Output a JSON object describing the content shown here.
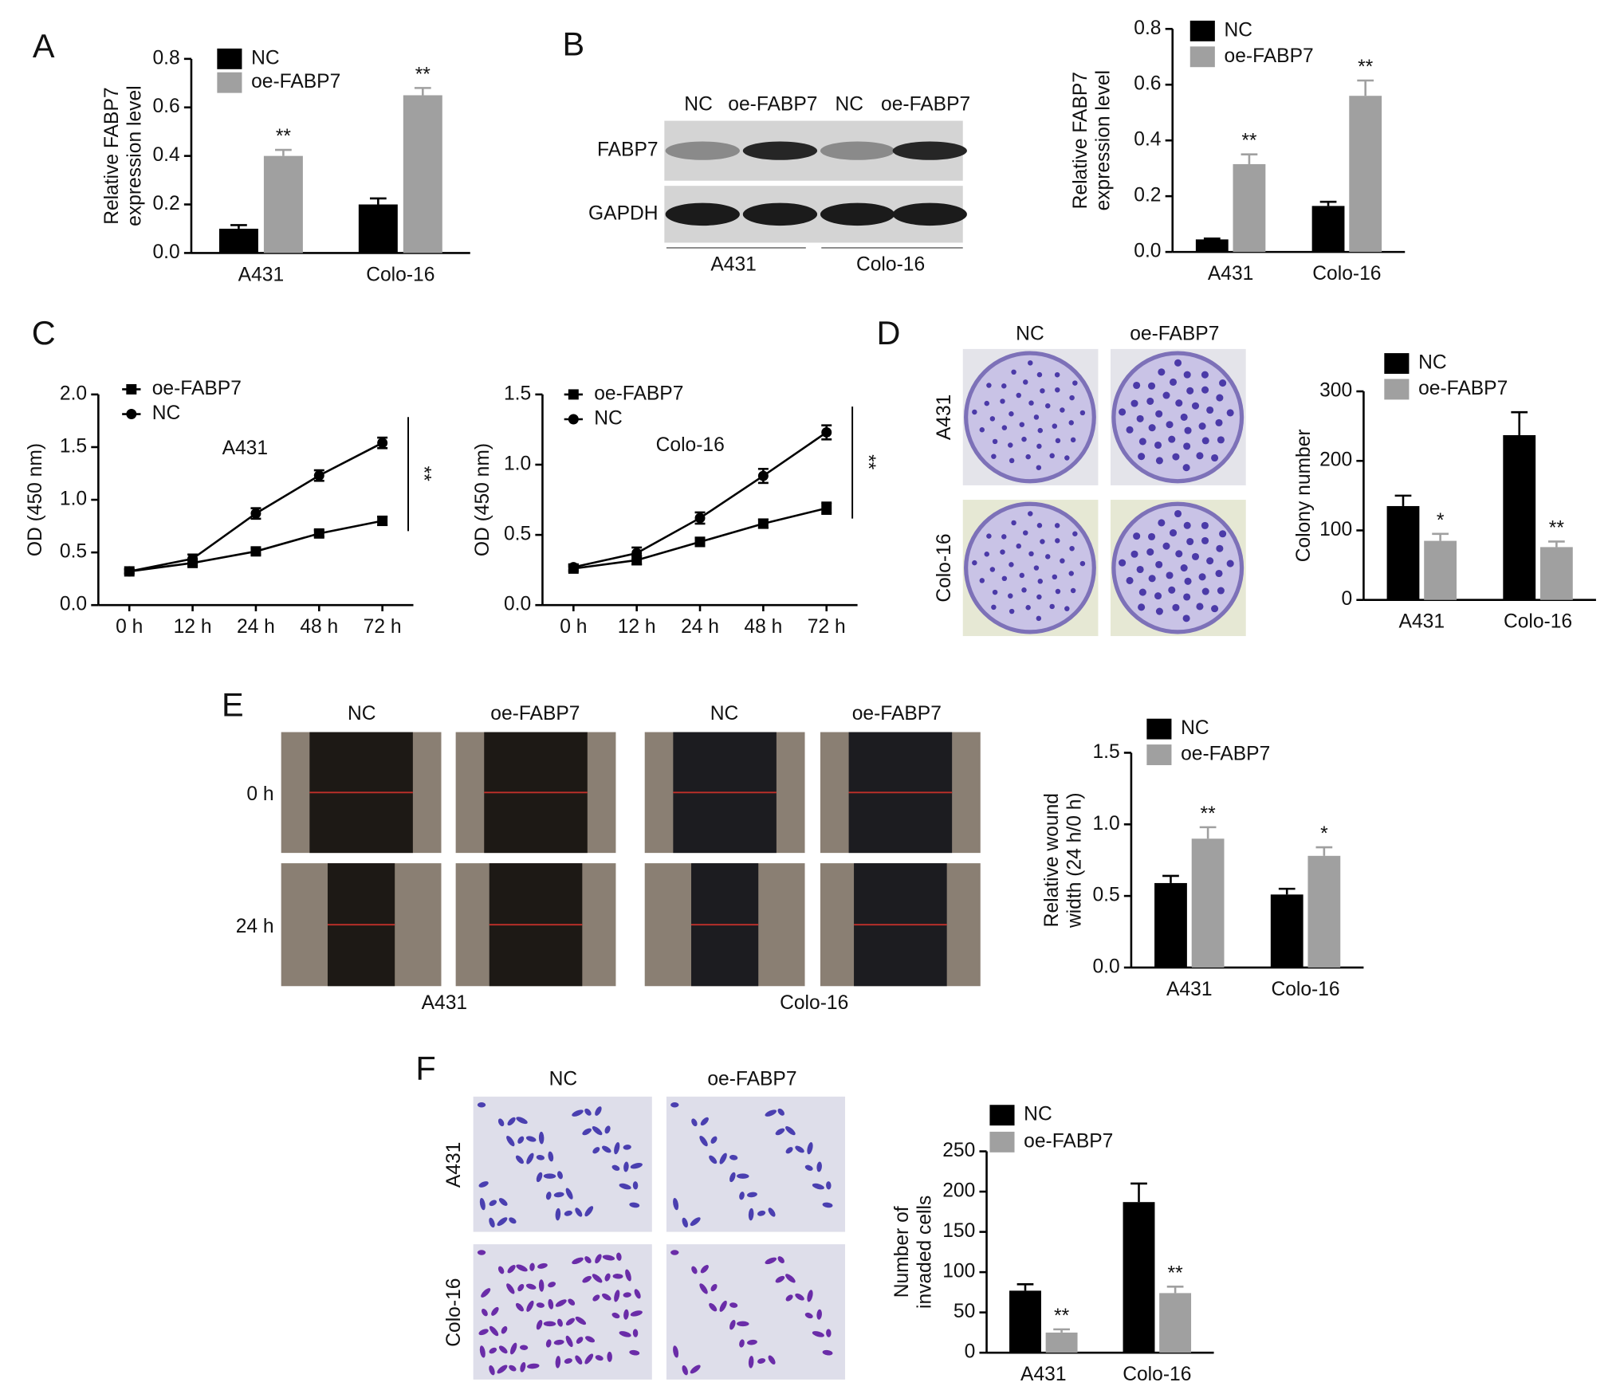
{
  "figure": {
    "panels": [
      "A",
      "B",
      "C",
      "D",
      "E",
      "F"
    ],
    "blot": {
      "lanes": [
        "NC",
        "oe-FABP7",
        "NC",
        "oe-FABP7"
      ],
      "rows": [
        "FABP7",
        "GAPDH"
      ],
      "groups": [
        "A431",
        "Colo-16"
      ]
    },
    "colony": {
      "cols": [
        "NC",
        "oe-FABP7"
      ],
      "rows": [
        "A431",
        "Colo-16"
      ]
    },
    "wound": {
      "cols": [
        "NC",
        "oe-FABP7",
        "NC",
        "oe-FABP7"
      ],
      "rows": [
        "0 h",
        "24 h"
      ],
      "groups": [
        "A431",
        "Colo-16"
      ]
    },
    "invasion": {
      "cols": [
        "NC",
        "oe-FABP7"
      ],
      "rows": [
        "A431",
        "Colo-16"
      ]
    }
  },
  "chart_data": [
    {
      "type": "bar",
      "ylabel": [
        "Relative FABP7",
        "expression level"
      ],
      "categories": [
        "A431",
        "Colo-16"
      ],
      "series": [
        {
          "name": "NC",
          "color": "#000000",
          "values": [
            0.1,
            0.2
          ],
          "errors": [
            0.015,
            0.025
          ]
        },
        {
          "name": "oe-FABP7",
          "color": "#a0a0a0",
          "values": [
            0.4,
            0.65
          ],
          "errors": [
            0.025,
            0.03
          ],
          "significance": [
            "**",
            "**"
          ]
        }
      ],
      "ylim": [
        0,
        0.8
      ],
      "yticks": [
        {
          "value": 0,
          "label": "0.0"
        },
        0.2,
        0.4,
        0.6,
        0.8
      ]
    },
    {
      "type": "bar",
      "ylabel": [
        "Relative FABP7",
        "expression level"
      ],
      "categories": [
        "A431",
        "Colo-16"
      ],
      "series": [
        {
          "name": "NC",
          "color": "#000000",
          "values": [
            0.045,
            0.165
          ],
          "errors": [
            0.003,
            0.015
          ]
        },
        {
          "name": "oe-FABP7",
          "color": "#a0a0a0",
          "values": [
            0.315,
            0.56
          ],
          "errors": [
            0.035,
            0.055
          ],
          "significance": [
            "**",
            "**"
          ]
        }
      ],
      "ylim": [
        0,
        0.8
      ],
      "yticks": [
        {
          "value": 0,
          "label": "0.0"
        },
        0.2,
        0.4,
        0.6,
        0.8
      ]
    },
    {
      "type": "line",
      "ylabel": [
        "OD (450 nm)"
      ],
      "annotation": "A431",
      "significance": "**",
      "categories": [
        "0 h",
        "12 h",
        "24 h",
        "48 h",
        "72 h"
      ],
      "series": [
        {
          "name": "oe-FABP7",
          "color": "#000000",
          "marker": "square",
          "values": [
            0.32,
            0.4,
            0.51,
            0.68,
            0.8
          ],
          "errors": [
            0.02,
            0.03,
            0.03,
            0.03,
            0.04
          ]
        },
        {
          "name": "NC",
          "color": "#000000",
          "marker": "circle",
          "values": [
            0.32,
            0.44,
            0.87,
            1.23,
            1.54
          ],
          "errors": [
            0.02,
            0.04,
            0.05,
            0.05,
            0.05
          ]
        }
      ],
      "ylim": [
        0,
        2
      ],
      "yticks": [
        {
          "value": 0,
          "label": "0.0"
        },
        0.5,
        {
          "value": 1,
          "label": "1.0"
        },
        1.5,
        {
          "value": 2,
          "label": "2.0"
        }
      ]
    },
    {
      "type": "line",
      "ylabel": [
        "OD (450 nm)"
      ],
      "annotation": "Colo-16",
      "significance": "**",
      "categories": [
        "0 h",
        "12 h",
        "24 h",
        "48 h",
        "72 h"
      ],
      "series": [
        {
          "name": "oe-FABP7",
          "color": "#000000",
          "marker": "square",
          "values": [
            0.26,
            0.32,
            0.45,
            0.58,
            0.69
          ],
          "errors": [
            0.02,
            0.03,
            0.03,
            0.03,
            0.04
          ]
        },
        {
          "name": "NC",
          "color": "#000000",
          "marker": "circle",
          "values": [
            0.27,
            0.37,
            0.62,
            0.92,
            1.23
          ],
          "errors": [
            0.02,
            0.04,
            0.04,
            0.05,
            0.05
          ]
        }
      ],
      "ylim": [
        0,
        1.5
      ],
      "yticks": [
        {
          "value": 0,
          "label": "0.0"
        },
        0.5,
        {
          "value": 1,
          "label": "1.0"
        },
        1.5
      ]
    },
    {
      "type": "bar",
      "ylabel": [
        "Colony number"
      ],
      "categories": [
        "A431",
        "Colo-16"
      ],
      "series": [
        {
          "name": "NC",
          "color": "#000000",
          "values": [
            135,
            237
          ],
          "errors": [
            15,
            33
          ]
        },
        {
          "name": "oe-FABP7",
          "color": "#a0a0a0",
          "values": [
            85,
            76
          ],
          "errors": [
            10,
            8
          ],
          "significance": [
            "*",
            "**"
          ]
        }
      ],
      "ylim": [
        0,
        300
      ],
      "yticks": [
        0,
        100,
        200,
        300
      ]
    },
    {
      "type": "bar",
      "ylabel": [
        "Relative wound",
        "width (24 h/0 h)"
      ],
      "categories": [
        "A431",
        "Colo-16"
      ],
      "series": [
        {
          "name": "NC",
          "color": "#000000",
          "values": [
            0.59,
            0.51
          ],
          "errors": [
            0.05,
            0.04
          ]
        },
        {
          "name": "oe-FABP7",
          "color": "#a0a0a0",
          "values": [
            0.9,
            0.78
          ],
          "errors": [
            0.08,
            0.06
          ],
          "significance": [
            "**",
            "*"
          ]
        }
      ],
      "ylim": [
        0,
        1.5
      ],
      "yticks": [
        {
          "value": 0,
          "label": "0.0"
        },
        0.5,
        {
          "value": 1,
          "label": "1.0"
        },
        1.5
      ]
    },
    {
      "type": "bar",
      "ylabel": [
        "Number of",
        "invaded cells"
      ],
      "categories": [
        "A431",
        "Colo-16"
      ],
      "series": [
        {
          "name": "NC",
          "color": "#000000",
          "values": [
            77,
            187
          ],
          "errors": [
            8,
            23
          ]
        },
        {
          "name": "oe-FABP7",
          "color": "#a0a0a0",
          "values": [
            25,
            74
          ],
          "errors": [
            4,
            8
          ],
          "significance": [
            "**",
            "**"
          ]
        }
      ],
      "ylim": [
        0,
        250
      ],
      "yticks": [
        0,
        50,
        100,
        150,
        200,
        250
      ]
    }
  ]
}
